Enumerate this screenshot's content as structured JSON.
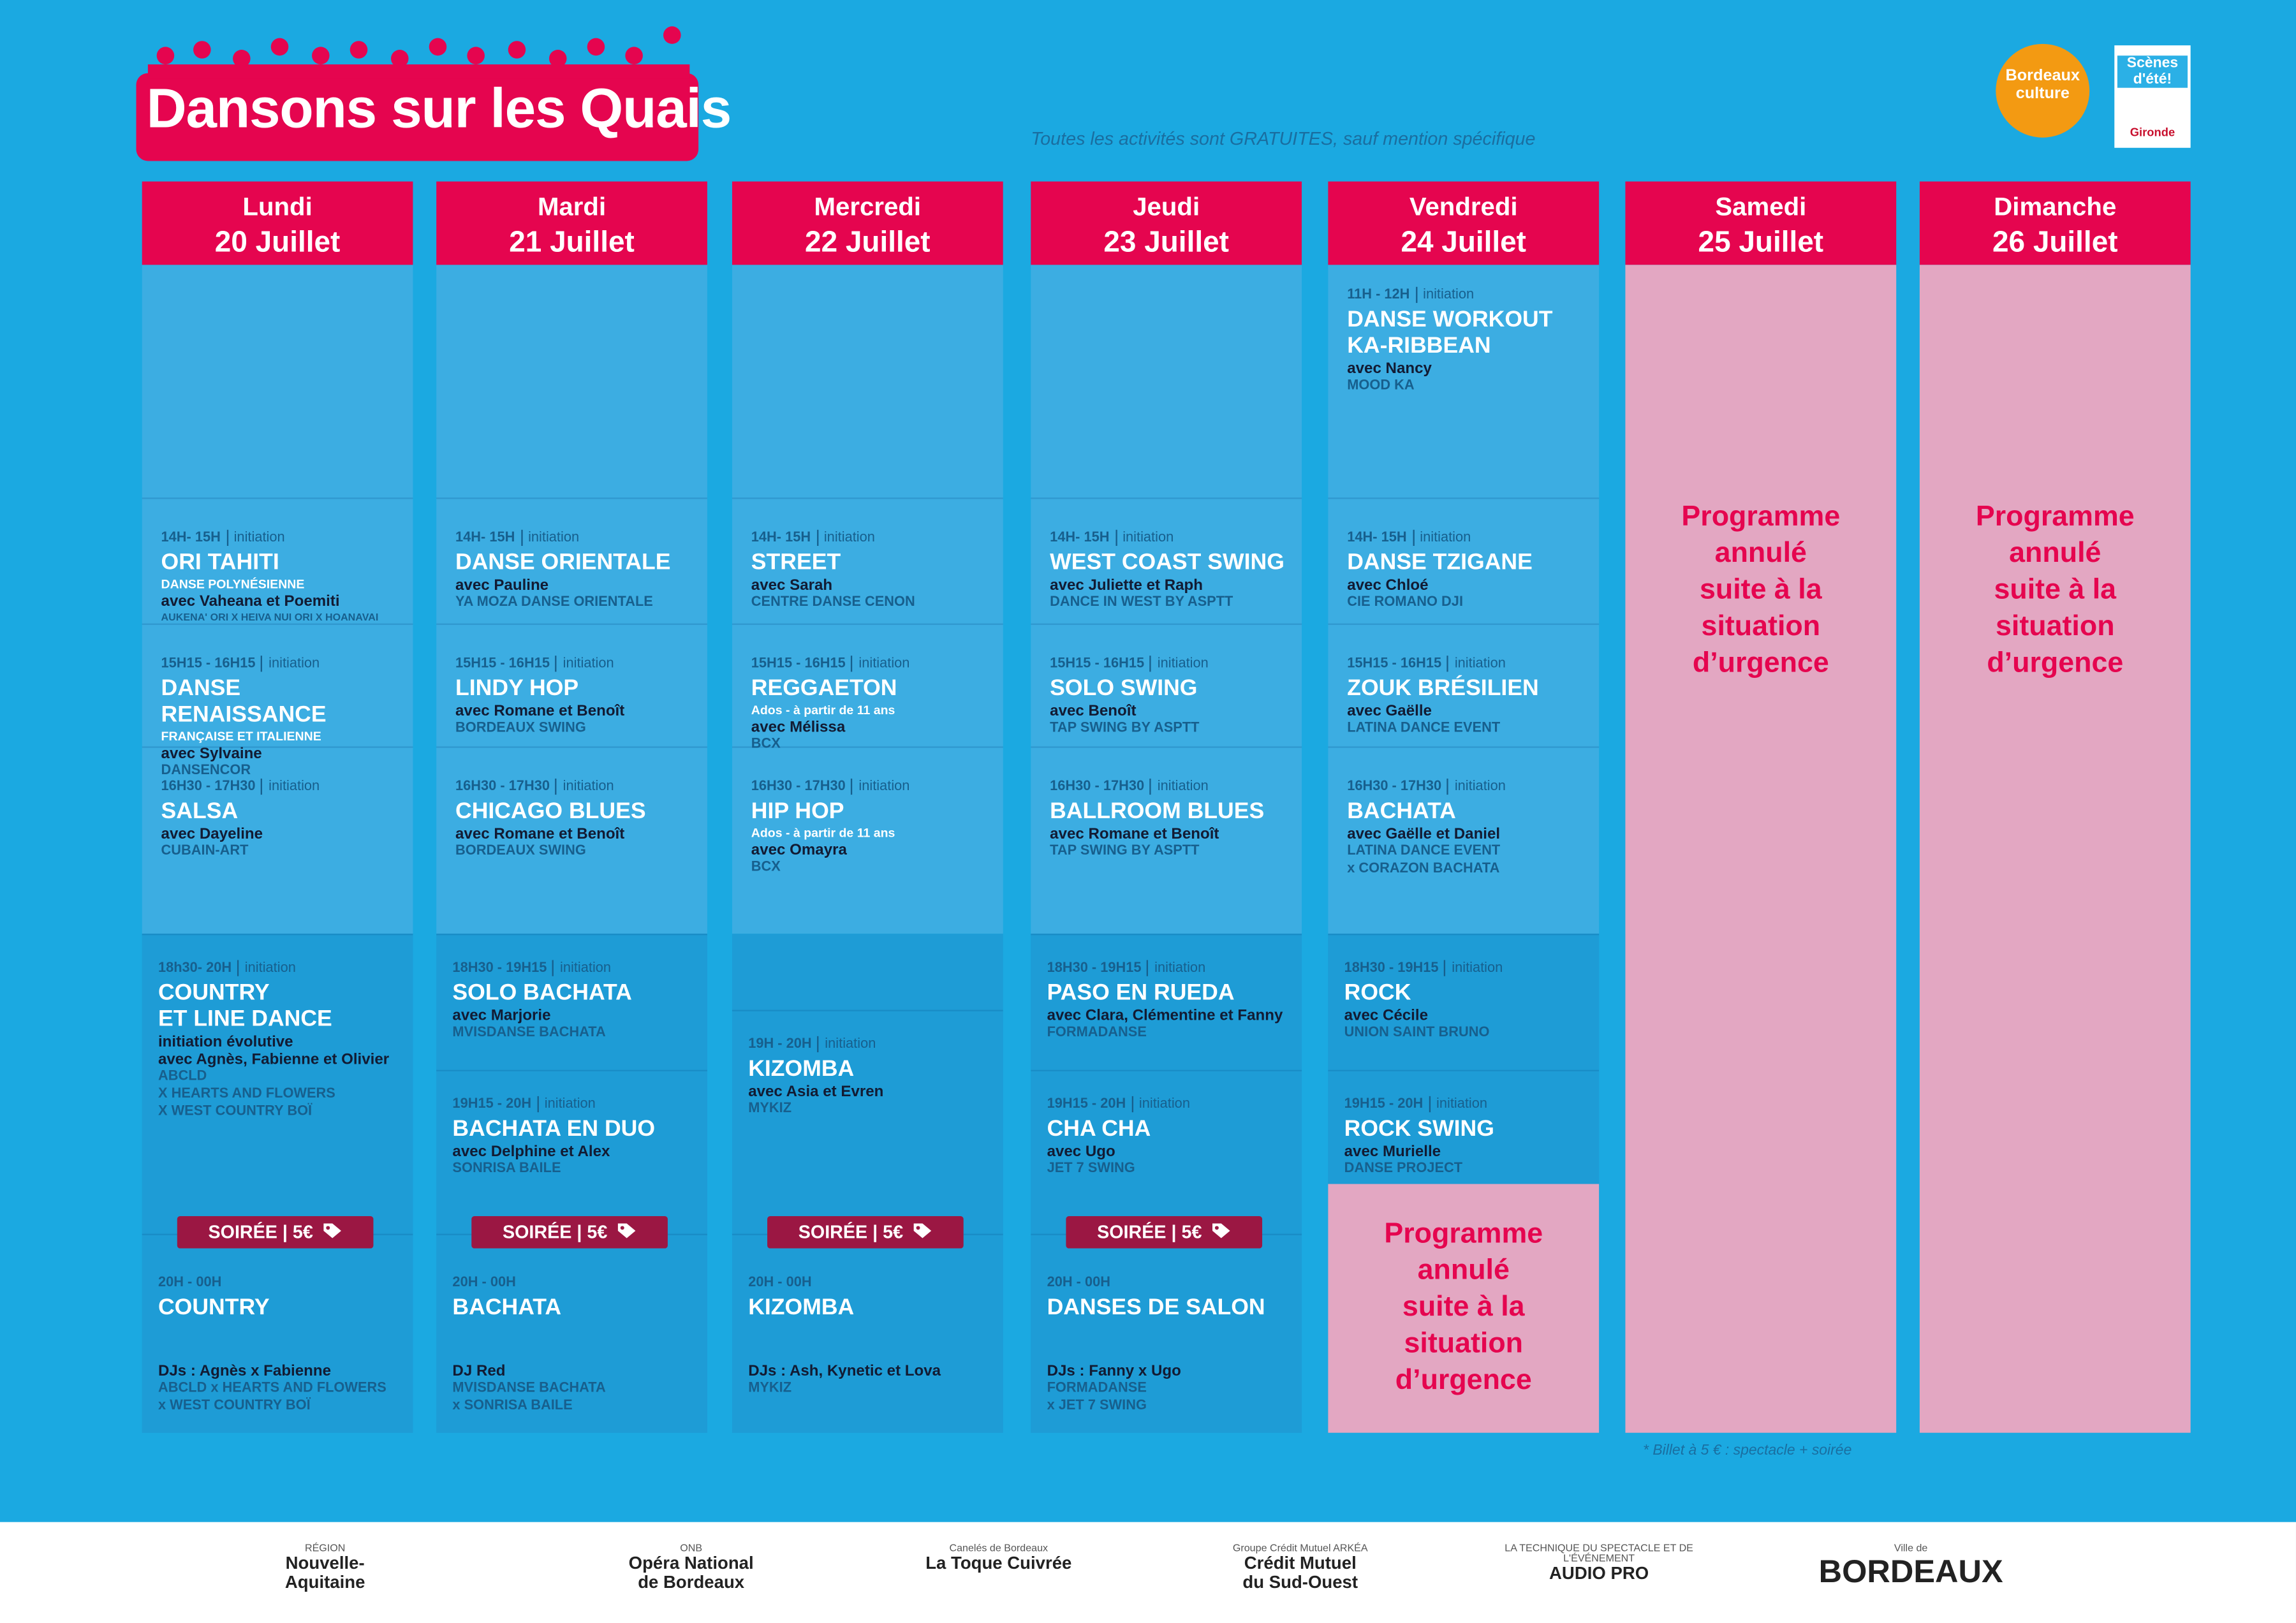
{
  "header": {
    "title": "Dansons sur les Quais",
    "notice": "Toutes les activités sont GRATUITES, sauf mention spécifique",
    "logos": [
      "Bordeaux culture",
      "Scènes d'été!",
      "Gironde"
    ]
  },
  "days": [
    {
      "day": "Lundi",
      "date": "20 Juillet",
      "badge": "SOIRÉE | 5€",
      "slots": [
        {
          "time": "14H- 15H",
          "level": "initiation",
          "title": "ORI TAHITI",
          "subtitle": "DANSE POLYNÉSIENNE",
          "with": "avec Vaheana et Poemiti",
          "org": "AUKENA' ORI X HEIVA NUI ORI X HOANAVAI"
        },
        {
          "time": "15H15 - 16H15",
          "level": "initiation",
          "title": "DANSE RENAISSANCE",
          "subtitle": "FRANÇAISE ET ITALIENNE",
          "with": "avec Sylvaine",
          "org": "DANSENCOR"
        },
        {
          "time": "16H30 - 17H30",
          "level": "initiation",
          "title": "SALSA",
          "with": "avec Dayeline",
          "org": "CUBAIN-ART"
        },
        {
          "time": "18h30- 20H",
          "level": "initiation",
          "title": "COUNTRY\nET LINE DANCE",
          "with": "initiation évolutive\navec Agnès, Fabienne et Olivier",
          "org": "ABCLD\nX HEARTS AND FLOWERS\nX WEST COUNTRY BOÏ"
        },
        {
          "time": "20H - 00H",
          "title": "COUNTRY",
          "with": "DJs : Agnès x Fabienne",
          "org": "ABCLD x HEARTS AND FLOWERS\nx WEST COUNTRY BOÏ"
        }
      ]
    },
    {
      "day": "Mardi",
      "date": "21 Juillet",
      "badge": "SOIRÉE | 5€",
      "slots": [
        {
          "time": "14H- 15H",
          "level": "initiation",
          "title": "DANSE ORIENTALE",
          "with": "avec Pauline",
          "org": "YA MOZA DANSE ORIENTALE"
        },
        {
          "time": "15H15 - 16H15",
          "level": "initiation",
          "title": "LINDY HOP",
          "with": "avec Romane et Benoît",
          "org": "BORDEAUX SWING"
        },
        {
          "time": "16H30 - 17H30",
          "level": "initiation",
          "title": "CHICAGO BLUES",
          "with": "avec Romane et Benoît",
          "org": "BORDEAUX SWING"
        },
        {
          "time": "18H30 - 19H15",
          "level": "initiation",
          "title": "SOLO BACHATA",
          "with": "avec Marjorie",
          "org": "MVISDANSE BACHATA"
        },
        {
          "time": "19H15 - 20H",
          "level": "initiation",
          "title": "BACHATA EN DUO",
          "with": "avec Delphine et Alex",
          "org": "SONRISA BAILE"
        },
        {
          "time": "20H - 00H",
          "title": "BACHATA",
          "with": "DJ Red",
          "org": "MVISDANSE BACHATA\nx SONRISA BAILE"
        }
      ]
    },
    {
      "day": "Mercredi",
      "date": "22 Juillet",
      "badge": "SOIRÉE | 5€",
      "slots": [
        {
          "time": "14H- 15H",
          "level": "initiation",
          "title": "STREET",
          "with": "avec Sarah",
          "org": "CENTRE DANSE CENON"
        },
        {
          "time": "15H15 - 16H15",
          "level": "initiation",
          "title": "REGGAETON",
          "subtitle": "Ados - à partir de 11 ans",
          "with": "avec Mélissa",
          "org": "BCX"
        },
        {
          "time": "16H30 - 17H30",
          "level": "initiation",
          "title": "HIP HOP",
          "subtitle": "Ados - à partir de 11 ans",
          "with": "avec Omayra",
          "org": "BCX"
        },
        {
          "time": "19H - 20H",
          "level": "initiation",
          "title": "KIZOMBA",
          "with": "avec Asia et Evren",
          "org": "MYKIZ"
        },
        {
          "time": "20H - 00H",
          "title": "KIZOMBA",
          "with": "DJs : Ash, Kynetic et Lova",
          "org": "MYKIZ"
        }
      ]
    },
    {
      "day": "Jeudi",
      "date": "23 Juillet",
      "badge": "SOIRÉE | 5€",
      "slots": [
        {
          "time": "14H- 15H",
          "level": "initiation",
          "title": "WEST COAST SWING",
          "with": "avec Juliette et Raph",
          "org": "DANCE IN WEST BY ASPTT"
        },
        {
          "time": "15H15 - 16H15",
          "level": "initiation",
          "title": "SOLO SWING",
          "with": "avec Benoît",
          "org": "TAP SWING BY ASPTT"
        },
        {
          "time": "16H30 - 17H30",
          "level": "initiation",
          "title": "BALLROOM BLUES",
          "with": "avec Romane et Benoît",
          "org": "TAP SWING BY ASPTT"
        },
        {
          "time": "18H30 - 19H15",
          "level": "initiation",
          "title": "PASO EN RUEDA",
          "with": "avec Clara, Clémentine et Fanny",
          "org": "FORMADANSE"
        },
        {
          "time": "19H15 - 20H",
          "level": "initiation",
          "title": "CHA CHA",
          "with": "avec Ugo",
          "org": "JET 7 SWING"
        },
        {
          "time": "20H - 00H",
          "title": "DANSES DE SALON",
          "with": "DJs : Fanny x Ugo",
          "org": "FORMADANSE\nx JET 7 SWING"
        }
      ]
    },
    {
      "day": "Vendredi",
      "date": "24 Juillet",
      "notice": "Programme\nannulé\nsuite à la\nsituation\nd’urgence",
      "slots": [
        {
          "time": "11H - 12H",
          "level": "initiation",
          "title": "DANSE WORKOUT\nKA-RIBBEAN",
          "with": "avec Nancy",
          "org": "MOOD KA"
        },
        {
          "time": "14H- 15H",
          "level": "initiation",
          "title": "DANSE TZIGANE",
          "with": "avec Chloé",
          "org": "CIE ROMANO DJI"
        },
        {
          "time": "15H15 - 16H15",
          "level": "initiation",
          "title": "ZOUK BRÉSILIEN",
          "with": "avec Gaëlle",
          "org": "LATINA DANCE EVENT"
        },
        {
          "time": "16H30 - 17H30",
          "level": "initiation",
          "title": "BACHATA",
          "with": "avec Gaëlle et Daniel",
          "org": "LATINA DANCE EVENT\nx CORAZON BACHATA"
        },
        {
          "time": "18H30 - 19H15",
          "level": "initiation",
          "title": "ROCK",
          "with": "avec Cécile",
          "org": "UNION SAINT BRUNO"
        },
        {
          "time": "19H15 - 20H",
          "level": "initiation",
          "title": "ROCK SWING",
          "with": "avec Murielle",
          "org": "DANSE PROJECT"
        }
      ]
    },
    {
      "day": "Samedi",
      "date": "25 Juillet",
      "notice": "Programme\nannulé\nsuite à la\nsituation\nd’urgence",
      "slots": []
    },
    {
      "day": "Dimanche",
      "date": "26 Juillet",
      "notice": "Programme\nannulé\nsuite à la\nsituation\nd’urgence",
      "slots": []
    }
  ],
  "footnote": "* Billet à 5 € : spectacle + soirée",
  "sponsors": [
    {
      "name": "Nouvelle-\nAquitaine",
      "sub": "RÉGION"
    },
    {
      "name": "Opéra National\nde Bordeaux",
      "sub": "ONB"
    },
    {
      "name": "La Toque Cuivrée",
      "sub": "Canelés de Bordeaux"
    },
    {
      "name": "Crédit Mutuel\ndu Sud-Ouest",
      "sub": "Groupe Crédit Mutuel ARKÉA"
    },
    {
      "name": "AUDIO PRO",
      "sub": "LA TECHNIQUE DU SPECTACLE ET DE L'ÉVÉNEMENT"
    },
    {
      "name": "BORDEAUX",
      "sub": "Ville de"
    }
  ]
}
